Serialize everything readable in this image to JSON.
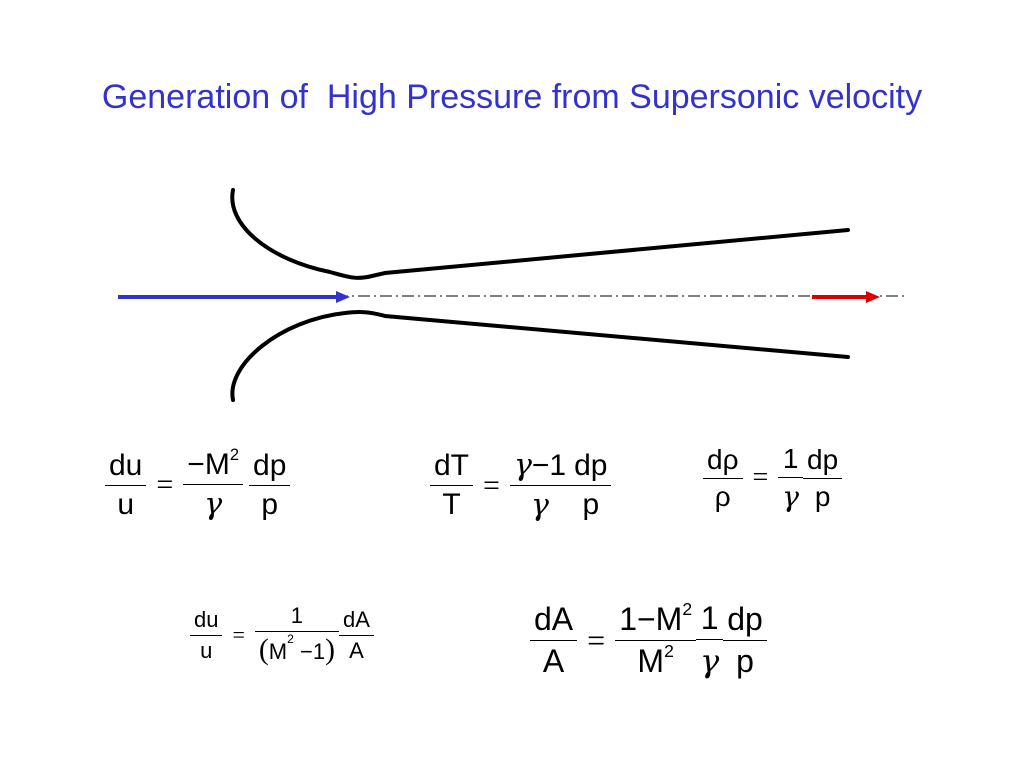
{
  "title": "Generation of  High Pressure from Supersonic velocity",
  "colors": {
    "title": "#3333cc",
    "inlet_arrow": "#3333cc",
    "outlet_arrow": "#dd0000",
    "nozzle": "#000000"
  },
  "eq1": {
    "lhs_num": "du",
    "lhs_den": "u",
    "eq": "=",
    "minus": "−",
    "m": "M",
    "m_exp": "2",
    "gamma": "γ",
    "rhs_num": "dp",
    "rhs_den": "p"
  },
  "eq2": {
    "lhs_num": "dT",
    "lhs_den": "T",
    "eq": "=",
    "gamma": "γ",
    "minus1": "−1",
    "gamma_den": "γ",
    "rhs_num": "dp",
    "rhs_den": "p"
  },
  "eq3": {
    "lhs_num": "dρ",
    "lhs_den": "ρ",
    "eq": "=",
    "one": "1",
    "gamma": "γ",
    "rhs_num": "dp",
    "rhs_den": "p"
  },
  "eq4": {
    "lhs_num": "du",
    "lhs_den": "u",
    "eq": "=",
    "one": "1",
    "lparen": "(",
    "m": "M",
    "m_exp": "2",
    "minus1": " −1",
    "rparen": ")",
    "rhs_num": "dA",
    "rhs_den": "A"
  },
  "eq5": {
    "lhs_num": "dA",
    "lhs_den": "A",
    "eq": "=",
    "one_minus": "1−",
    "m": "M",
    "m_exp": "2",
    "m_den": "M",
    "m_den_exp": "2",
    "one": "1",
    "gamma": "γ",
    "rhs_num": "dp",
    "rhs_den": "p"
  }
}
